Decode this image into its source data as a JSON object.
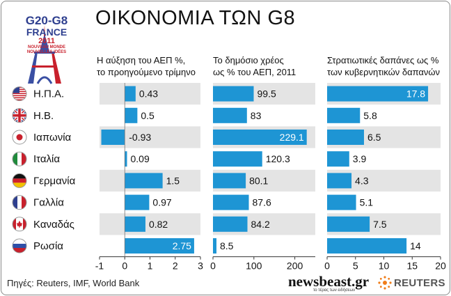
{
  "title": "ΟΙΚΟΝΟΜΙΑ ΤΩΝ G8",
  "logo": {
    "line1": "G20-G8",
    "line2": "FRANCE",
    "line3": "2011",
    "line4": "NOUVEAU MONDE",
    "line5": "NOUVELLES IDÉES"
  },
  "source": "Πηγές: Reuters, IMF, World Bank",
  "brands": {
    "newsbeast": "newsbeast.gr",
    "newsbeast_tagline": "το τέρας των ειδήσεων",
    "reuters": "REUTERS"
  },
  "colors": {
    "bar": "#1e95d4",
    "band": "#e4e4e4",
    "label_on_bar": "#ffffff",
    "text": "#111111"
  },
  "countries": [
    {
      "name": "Η.Π.Α.",
      "flag": "us-flag-icon"
    },
    {
      "name": "Η.Β.",
      "flag": "uk-flag-icon"
    },
    {
      "name": "Ιαπωνία",
      "flag": "japan-flag-icon"
    },
    {
      "name": "Ιταλία",
      "flag": "italy-flag-icon"
    },
    {
      "name": "Γερμανία",
      "flag": "germany-flag-icon"
    },
    {
      "name": "Γαλλία",
      "flag": "france-flag-icon"
    },
    {
      "name": "Καναδάς",
      "flag": "canada-flag-icon"
    },
    {
      "name": "Ρωσία",
      "flag": "russia-flag-icon"
    }
  ],
  "chart_data": [
    {
      "type": "bar",
      "orientation": "horizontal",
      "title": "Η αύξηση του ΑΕΠ %, το προηγούμενο τρίμηνο",
      "title_lines": [
        "Η αύξηση του ΑΕΠ %,",
        "το προηγούμενο τρίμηνο"
      ],
      "categories": [
        "Η.Π.Α.",
        "Η.Β.",
        "Ιαπωνία",
        "Ιταλία",
        "Γερμανία",
        "Γαλλία",
        "Καναδάς",
        "Ρωσία"
      ],
      "values": [
        0.43,
        0.5,
        -0.93,
        0.09,
        1.5,
        0.97,
        0.82,
        2.75
      ],
      "labels": [
        "0.43",
        "0.5",
        "-0.93",
        "0.09",
        "1.5",
        "0.97",
        "0.82",
        "2.75"
      ],
      "xlim": [
        -1,
        3
      ],
      "ticks": [
        -1,
        0,
        1,
        2,
        3
      ],
      "tick_labels": [
        "-1",
        "0",
        "1",
        "2",
        "3"
      ],
      "label_inside": [
        false,
        false,
        false,
        false,
        false,
        false,
        false,
        true
      ]
    },
    {
      "type": "bar",
      "orientation": "horizontal",
      "title": "Το δημόσιο χρέος ως % του ΑΕΠ, 2011",
      "title_lines": [
        "Το δημόσιο χρέος",
        "ως % του ΑΕΠ, 2011"
      ],
      "categories": [
        "Η.Π.Α.",
        "Η.Β.",
        "Ιαπωνία",
        "Ιταλία",
        "Γερμανία",
        "Γαλλία",
        "Καναδάς",
        "Ρωσία"
      ],
      "values": [
        99.5,
        83,
        229.1,
        120.3,
        80.1,
        87.6,
        84.2,
        8.5
      ],
      "labels": [
        "99.5",
        "83",
        "229.1",
        "120.3",
        "80.1",
        "87.6",
        "84.2",
        "8.5"
      ],
      "xlim": [
        0,
        250
      ],
      "ticks": [
        0,
        100,
        200
      ],
      "tick_labels": [
        "0",
        "100",
        "200"
      ],
      "label_inside": [
        false,
        false,
        true,
        false,
        false,
        false,
        false,
        false
      ]
    },
    {
      "type": "bar",
      "orientation": "horizontal",
      "title": "Στρατιωτικές δαπάνες ως % των κυβερνητικών δαπανών",
      "title_lines": [
        "Στρατιωτικές δαπάνες ως %",
        "των κυβερνητικών δαπανών"
      ],
      "categories": [
        "Η.Π.Α.",
        "Η.Β.",
        "Ιαπωνία",
        "Ιταλία",
        "Γερμανία",
        "Γαλλία",
        "Καναδάς",
        "Ρωσία"
      ],
      "values": [
        17.8,
        5.8,
        6.5,
        3.9,
        4.3,
        5.1,
        7.5,
        14
      ],
      "labels": [
        "17.8",
        "5.8",
        "6.5",
        "3.9",
        "4.3",
        "5.1",
        "7.5",
        "14"
      ],
      "xlim": [
        0,
        20
      ],
      "ticks": [
        0,
        5,
        10,
        15,
        20
      ],
      "tick_labels": [
        "0",
        "5",
        "10",
        "15",
        "20"
      ],
      "label_inside": [
        true,
        false,
        false,
        false,
        false,
        false,
        false,
        false
      ]
    }
  ]
}
